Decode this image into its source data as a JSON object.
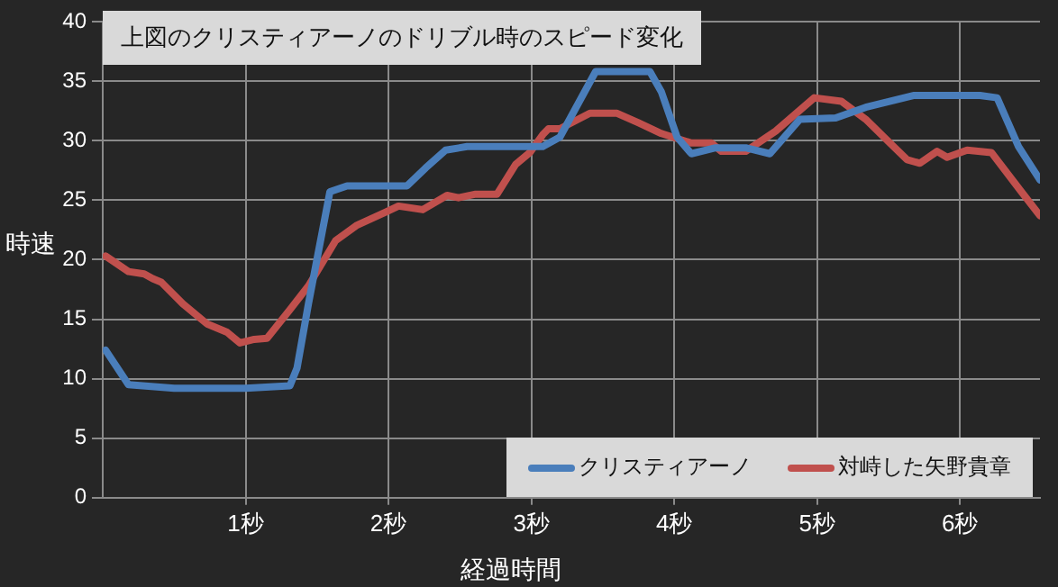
{
  "chart_data": {
    "type": "line",
    "title": "上図のクリスティアーノのドリブル時のスピード変化",
    "xlabel": "経過時間",
    "ylabel": "時速",
    "xlim": [
      0,
      6.56
    ],
    "xticks": [
      {
        "value": 1,
        "label": "1秒"
      },
      {
        "value": 2,
        "label": "2秒"
      },
      {
        "value": 3,
        "label": "3秒"
      },
      {
        "value": 4,
        "label": "4秒"
      },
      {
        "value": 5,
        "label": "5秒"
      },
      {
        "value": 6,
        "label": "6秒"
      }
    ],
    "ylim": [
      0,
      40
    ],
    "yticks": [
      0,
      5,
      10,
      15,
      20,
      25,
      30,
      35,
      40
    ],
    "grid": true,
    "legend": "bottom right",
    "marker": "none",
    "series": [
      {
        "name": "クリスティアーノ",
        "color": "#4a7ebb",
        "x": [
          0.02,
          0.18,
          0.5,
          1.0,
          1.31,
          1.36,
          1.44,
          1.59,
          1.71,
          2.13,
          2.26,
          2.4,
          2.55,
          3.08,
          3.2,
          3.45,
          3.83,
          3.91,
          4.02,
          4.12,
          4.29,
          4.5,
          4.67,
          4.88,
          5.13,
          5.34,
          5.68,
          6.14,
          6.26,
          6.41,
          6.56
        ],
        "values": [
          12.4,
          9.5,
          9.2,
          9.2,
          9.4,
          10.9,
          16.3,
          25.7,
          26.2,
          26.2,
          27.7,
          29.2,
          29.5,
          29.5,
          30.3,
          35.8,
          35.8,
          34.1,
          30.3,
          28.9,
          29.4,
          29.4,
          28.9,
          31.8,
          31.9,
          32.8,
          33.8,
          33.8,
          33.6,
          29.5,
          26.7
        ]
      },
      {
        "name": "対峙した矢野貴章",
        "color": "#c0504d",
        "x": [
          0.02,
          0.18,
          0.29,
          0.35,
          0.41,
          0.56,
          0.73,
          0.87,
          0.96,
          1.06,
          1.15,
          1.31,
          1.44,
          1.63,
          1.78,
          1.98,
          2.07,
          2.24,
          2.41,
          2.49,
          2.61,
          2.76,
          2.89,
          2.99,
          3.08,
          3.12,
          3.2,
          3.41,
          3.6,
          3.75,
          3.91,
          4.12,
          4.26,
          4.33,
          4.5,
          4.71,
          4.98,
          5.17,
          5.34,
          5.51,
          5.63,
          5.72,
          5.84,
          5.91,
          6.05,
          6.22,
          6.43,
          6.56
        ],
        "values": [
          20.3,
          19.0,
          18.8,
          18.4,
          18.1,
          16.3,
          14.6,
          13.9,
          13.0,
          13.3,
          13.4,
          15.8,
          17.8,
          21.6,
          22.9,
          24.0,
          24.5,
          24.2,
          25.4,
          25.2,
          25.5,
          25.5,
          28.0,
          29.0,
          30.5,
          31.0,
          31.0,
          32.3,
          32.3,
          31.5,
          30.6,
          29.8,
          29.8,
          29.1,
          29.1,
          30.8,
          33.6,
          33.3,
          31.8,
          29.8,
          28.4,
          28.1,
          29.1,
          28.6,
          29.2,
          29.0,
          25.7,
          23.7
        ]
      }
    ]
  }
}
